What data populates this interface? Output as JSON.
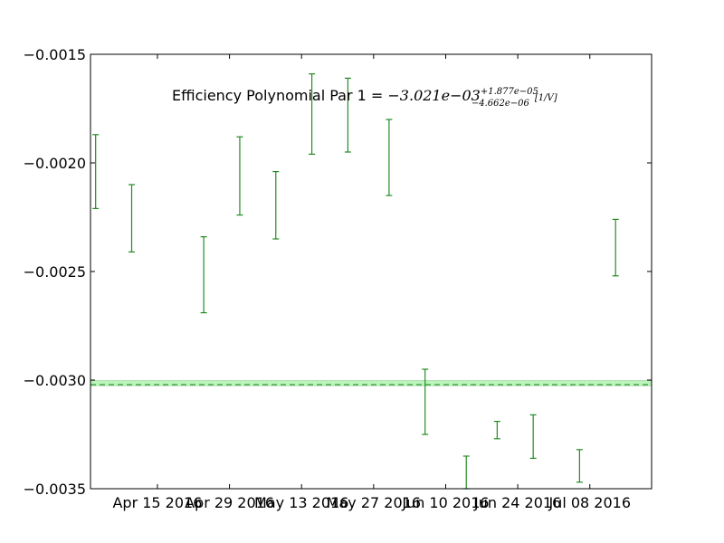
{
  "chart_data": {
    "type": "scatter",
    "title": "",
    "xlabel": "",
    "ylabel": "",
    "xlim": [
      "2016-04-02",
      "2016-07-20"
    ],
    "ylim": [
      -0.0035,
      -0.0015
    ],
    "grid": false,
    "x_ticks": [
      {
        "date": "2016-04-15",
        "label": "Apr 15 2016"
      },
      {
        "date": "2016-04-29",
        "label": "Apr 29 2016"
      },
      {
        "date": "2016-05-13",
        "label": "May 13 2016"
      },
      {
        "date": "2016-05-27",
        "label": "May 27 2016"
      },
      {
        "date": "2016-06-10",
        "label": "Jun 10 2016"
      },
      {
        "date": "2016-06-24",
        "label": "Jun 24 2016"
      },
      {
        "date": "2016-07-08",
        "label": "Jul 08 2016"
      }
    ],
    "y_ticks": [
      {
        "value": -0.0015,
        "label": "−0.0015"
      },
      {
        "value": -0.002,
        "label": "−0.0020"
      },
      {
        "value": -0.0025,
        "label": "−0.0025"
      },
      {
        "value": -0.003,
        "label": "−0.0030"
      },
      {
        "value": -0.0035,
        "label": "−0.0035"
      }
    ],
    "series": [
      {
        "kind": "errorbar",
        "color": "#228B22",
        "points": [
          {
            "x": "2016-04-03",
            "low": -0.00221,
            "high": -0.00187
          },
          {
            "x": "2016-04-10",
            "low": -0.00241,
            "high": -0.0021
          },
          {
            "x": "2016-04-24",
            "low": -0.00269,
            "high": -0.00234
          },
          {
            "x": "2016-05-01",
            "low": -0.00224,
            "high": -0.00188
          },
          {
            "x": "2016-05-08",
            "low": -0.00235,
            "high": -0.00204
          },
          {
            "x": "2016-05-15",
            "low": -0.00196,
            "high": -0.00159
          },
          {
            "x": "2016-05-22",
            "low": -0.00195,
            "high": -0.00161
          },
          {
            "x": "2016-05-30",
            "low": -0.00215,
            "high": -0.0018
          },
          {
            "x": "2016-06-06",
            "low": -0.00325,
            "high": -0.00295
          },
          {
            "x": "2016-06-14",
            "low": -0.0035,
            "high": -0.00335
          },
          {
            "x": "2016-06-20",
            "low": -0.00327,
            "high": -0.00319
          },
          {
            "x": "2016-06-27",
            "low": -0.00336,
            "high": -0.00316
          },
          {
            "x": "2016-07-06",
            "low": -0.00347,
            "high": -0.00332
          },
          {
            "x": "2016-07-13",
            "low": -0.00252,
            "high": -0.00226
          }
        ]
      }
    ],
    "reference": {
      "value": -0.003021,
      "band_low": -0.0030257,
      "band_high": -0.0030022,
      "line_color": "#228B22",
      "band_color": "#90EE90"
    },
    "annotation": {
      "text": "Efficiency Polynomial Par 1 = ",
      "math_main": "−3.021e−03",
      "math_sup": "+1.877e−05",
      "math_sub": "−4.662e−06",
      "unit": "[1/V]"
    }
  }
}
